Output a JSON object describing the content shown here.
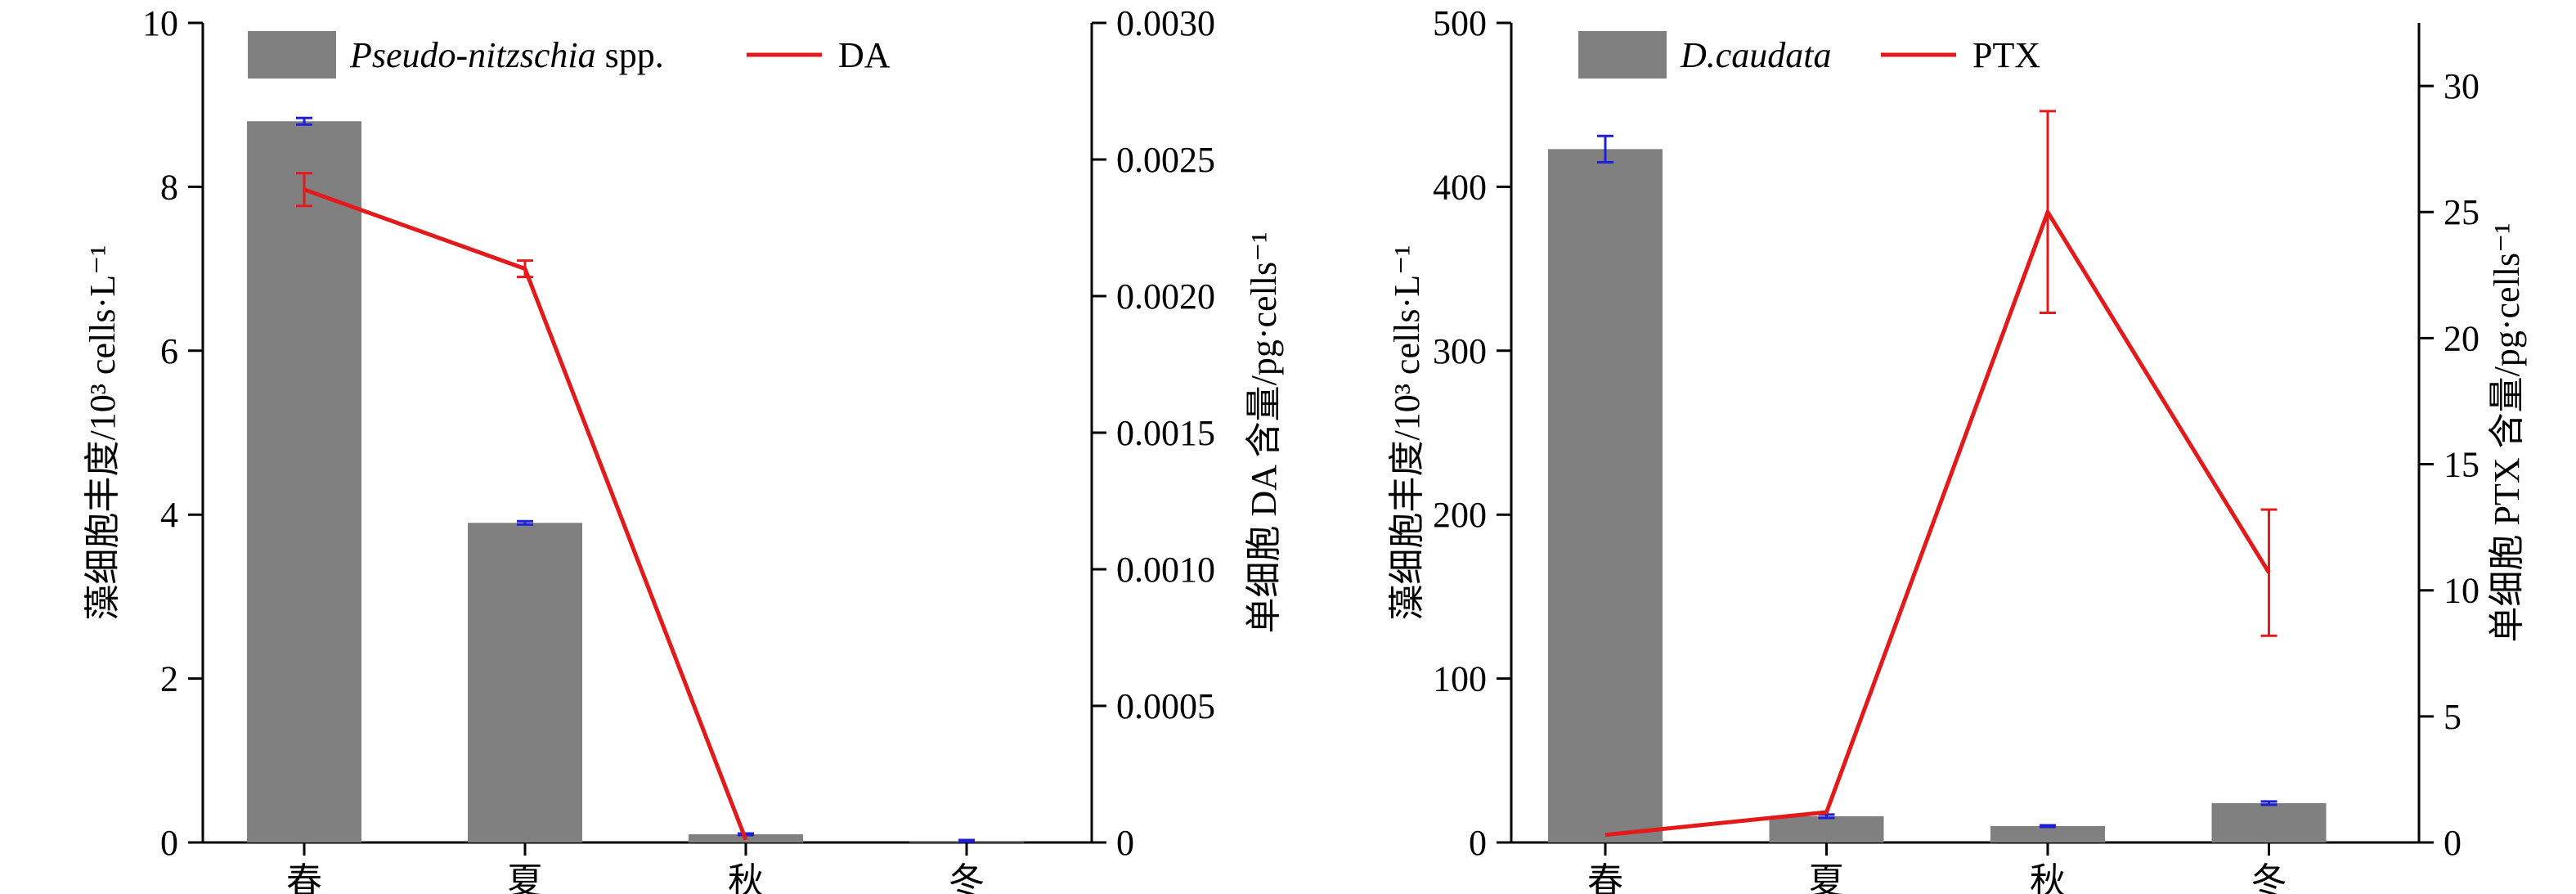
{
  "colors": {
    "bar": "#808080",
    "line": "#e31a1c",
    "bar_error": "#1f1fd6",
    "axis": "#000000"
  },
  "chart_data": [
    {
      "type": "bar",
      "categories": [
        "春",
        "夏",
        "秋",
        "冬"
      ],
      "ylabel": "藻细胞丰度/10³ cells·L⁻¹",
      "y2label": "单细胞 DA 含量/pg·cells⁻¹",
      "ylim": [
        0,
        10
      ],
      "y2lim": [
        0,
        0.003
      ],
      "yticks": [
        "0",
        "2",
        "4",
        "6",
        "8",
        "10"
      ],
      "y2ticks": [
        "0",
        "0.0005",
        "0.0010",
        "0.0015",
        "0.0020",
        "0.0025",
        "0.0030"
      ],
      "legend_position": "top-left",
      "series": [
        {
          "name": "Pseudo-nitzschia",
          "name_suffix": " spp.",
          "kind": "bar",
          "axis": "left",
          "values": [
            8.8,
            3.9,
            0.1,
            0.02
          ],
          "errors": [
            0.04,
            0.02,
            0.01,
            0.01
          ]
        },
        {
          "name": "DA",
          "kind": "line",
          "axis": "right",
          "values": [
            0.00239,
            0.0021,
            1e-05,
            null
          ],
          "errors": [
            6e-05,
            3e-05,
            null,
            null
          ]
        }
      ]
    },
    {
      "type": "bar",
      "categories": [
        "春",
        "夏",
        "秋",
        "冬"
      ],
      "ylabel": "藻细胞丰度/10³ cells·L⁻¹",
      "y2label": "单细胞 PTX 含量/pg·cells⁻¹",
      "ylim": [
        0,
        500
      ],
      "y2lim": [
        0,
        32.5
      ],
      "yticks": [
        "0",
        "100",
        "200",
        "300",
        "400",
        "500"
      ],
      "y2ticks": [
        "0",
        "5",
        "10",
        "15",
        "20",
        "25",
        "30"
      ],
      "legend_position": "top-left",
      "series": [
        {
          "name": "D.caudata",
          "name_suffix": "",
          "kind": "bar",
          "axis": "left",
          "values": [
            423,
            16,
            10,
            24
          ],
          "errors": [
            8,
            1,
            0.5,
            1
          ]
        },
        {
          "name": "PTX",
          "kind": "line",
          "axis": "right",
          "values": [
            0.3,
            1.2,
            25,
            10.7
          ],
          "errors": [
            null,
            null,
            4,
            2.5
          ]
        }
      ]
    }
  ]
}
